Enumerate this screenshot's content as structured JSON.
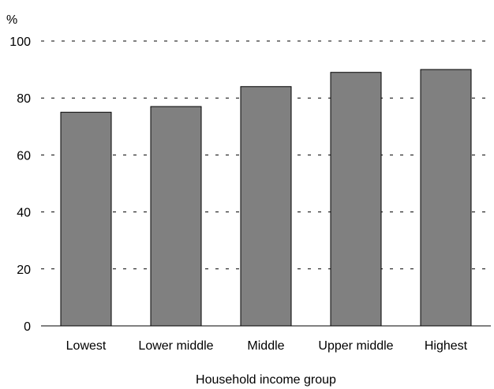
{
  "chart_data": {
    "type": "bar",
    "title": "",
    "ylabel": "%",
    "xlabel": "Household income group",
    "categories": [
      "Lowest",
      "Lower middle",
      "Middle",
      "Upper middle",
      "Highest"
    ],
    "values": [
      75,
      77,
      84,
      89,
      90
    ],
    "ylim": [
      0,
      100
    ],
    "yticks": [
      "0",
      "20",
      "40",
      "60",
      "80",
      "100"
    ],
    "grid": true,
    "bar_color": "#808080"
  }
}
